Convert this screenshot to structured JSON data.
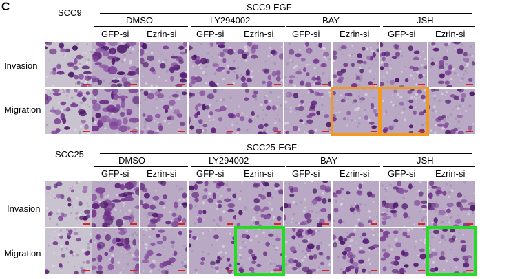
{
  "panel_letter": "C",
  "sections": [
    {
      "cell_line": "SCC9",
      "group_label": "SCC9-EGF",
      "treatments": [
        "DMSO",
        "LY294002",
        "BAY",
        "JSH"
      ],
      "conditions": [
        "GFP-si",
        "Ezrin-si",
        "GFP-si",
        "Ezrin-si",
        "GFP-si",
        "Ezrin-si",
        "GFP-si",
        "Ezrin-si"
      ],
      "rows": [
        "Invasion",
        "Migration"
      ],
      "highlight_color": "#f39a1c",
      "highlights": [
        {
          "row": "Migration",
          "treatment": "BAY",
          "condition": "Ezrin-si"
        },
        {
          "row": "Migration",
          "treatment": "JSH",
          "condition": "GFP-si"
        }
      ]
    },
    {
      "cell_line": "SCC25",
      "group_label": "SCC25-EGF",
      "treatments": [
        "DMSO",
        "LY294002",
        "BAY",
        "JSH"
      ],
      "conditions": [
        "GFP-si",
        "Ezrin-si",
        "GFP-si",
        "Ezrin-si",
        "GFP-si",
        "Ezrin-si",
        "GFP-si",
        "Ezrin-si"
      ],
      "rows": [
        "Invasion",
        "Migration"
      ],
      "highlight_color": "#22dd22",
      "highlights": [
        {
          "row": "Migration",
          "treatment": "LY294002",
          "condition": "Ezrin-si"
        },
        {
          "row": "Migration",
          "treatment": "JSH",
          "condition": "Ezrin-si"
        }
      ]
    }
  ]
}
